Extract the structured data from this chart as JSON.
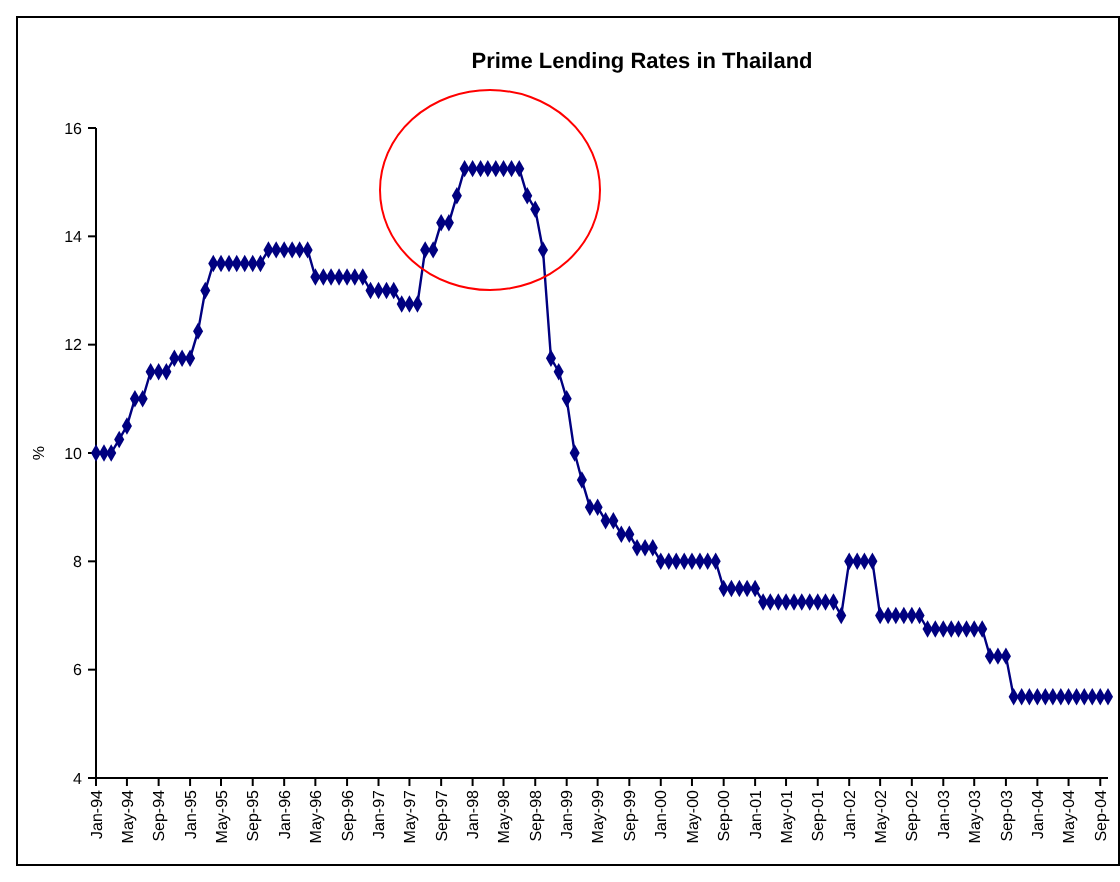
{
  "chart_data": {
    "type": "line",
    "title": "Prime Lending Rates in Thailand",
    "ylabel": "%",
    "x": [
      "1994-01",
      "1994-02",
      "1994-03",
      "1994-04",
      "1994-05",
      "1994-06",
      "1994-07",
      "1994-08",
      "1994-09",
      "1994-10",
      "1994-11",
      "1994-12",
      "1995-01",
      "1995-02",
      "1995-03",
      "1995-04",
      "1995-05",
      "1995-06",
      "1995-07",
      "1995-08",
      "1995-09",
      "1995-10",
      "1995-11",
      "1995-12",
      "1996-01",
      "1996-02",
      "1996-03",
      "1996-04",
      "1996-05",
      "1996-06",
      "1996-07",
      "1996-08",
      "1996-09",
      "1996-10",
      "1996-11",
      "1996-12",
      "1997-01",
      "1997-02",
      "1997-03",
      "1997-04",
      "1997-05",
      "1997-06",
      "1997-07",
      "1997-08",
      "1997-09",
      "1997-10",
      "1997-11",
      "1997-12",
      "1998-01",
      "1998-02",
      "1998-03",
      "1998-04",
      "1998-05",
      "1998-06",
      "1998-07",
      "1998-08",
      "1998-09",
      "1998-10",
      "1998-11",
      "1998-12",
      "1999-01",
      "1999-02",
      "1999-03",
      "1999-04",
      "1999-05",
      "1999-06",
      "1999-07",
      "1999-08",
      "1999-09",
      "1999-10",
      "1999-11",
      "1999-12",
      "2000-01",
      "2000-02",
      "2000-03",
      "2000-04",
      "2000-05",
      "2000-06",
      "2000-07",
      "2000-08",
      "2000-09",
      "2000-10",
      "2000-11",
      "2000-12",
      "2001-01",
      "2001-02",
      "2001-03",
      "2001-04",
      "2001-05",
      "2001-06",
      "2001-07",
      "2001-08",
      "2001-09",
      "2001-10",
      "2001-11",
      "2001-12",
      "2002-01",
      "2002-02",
      "2002-03",
      "2002-04",
      "2002-05",
      "2002-06",
      "2002-07",
      "2002-08",
      "2002-09",
      "2002-10",
      "2002-11",
      "2002-12",
      "2003-01",
      "2003-02",
      "2003-03",
      "2003-04",
      "2003-05",
      "2003-06",
      "2003-07",
      "2003-08",
      "2003-09",
      "2003-10",
      "2003-11",
      "2003-12",
      "2004-01",
      "2004-02",
      "2004-03",
      "2004-04",
      "2004-05",
      "2004-06",
      "2004-07",
      "2004-08",
      "2004-09",
      "2004-10"
    ],
    "series": [
      {
        "color": "#000080",
        "values": [
          10,
          10,
          10,
          10.25,
          10.5,
          11,
          11,
          11.5,
          11.5,
          11.5,
          11.75,
          11.75,
          11.75,
          12.25,
          13,
          13.5,
          13.5,
          13.5,
          13.5,
          13.5,
          13.5,
          13.5,
          13.75,
          13.75,
          13.75,
          13.75,
          13.75,
          13.75,
          13.25,
          13.25,
          13.25,
          13.25,
          13.25,
          13.25,
          13.25,
          13,
          13,
          13,
          13,
          12.75,
          12.75,
          12.75,
          13.75,
          13.75,
          14.25,
          14.25,
          14.75,
          15.25,
          15.25,
          15.25,
          15.25,
          15.25,
          15.25,
          15.25,
          15.25,
          14.75,
          14.5,
          13.75,
          11.75,
          11.5,
          11,
          10,
          9.5,
          9,
          9,
          8.75,
          8.75,
          8.5,
          8.5,
          8.25,
          8.25,
          8.25,
          8,
          8,
          8,
          8,
          8,
          8,
          8,
          8,
          7.5,
          7.5,
          7.5,
          7.5,
          7.5,
          7.25,
          7.25,
          7.25,
          7.25,
          7.25,
          7.25,
          7.25,
          7.25,
          7.25,
          7.25,
          7,
          8,
          8,
          8,
          8,
          7,
          7,
          7,
          7,
          7,
          7,
          6.75,
          6.75,
          6.75,
          6.75,
          6.75,
          6.75,
          6.75,
          6.75,
          6.25,
          6.25,
          6.25,
          5.5,
          5.5,
          5.5,
          5.5,
          5.5,
          5.5,
          5.5,
          5.5,
          5.5,
          5.5,
          5.5,
          5.5,
          5.5
        ]
      }
    ],
    "xlim": [
      "1994-01",
      "2004-10"
    ],
    "xticks": [
      {
        "value": "1994-01",
        "label": "Jan-94"
      },
      {
        "value": "1994-05",
        "label": "May-94"
      },
      {
        "value": "1994-09",
        "label": "Sep-94"
      },
      {
        "value": "1995-01",
        "label": "Jan-95"
      },
      {
        "value": "1995-05",
        "label": "May-95"
      },
      {
        "value": "1995-09",
        "label": "Sep-95"
      },
      {
        "value": "1996-01",
        "label": "Jan-96"
      },
      {
        "value": "1996-05",
        "label": "May-96"
      },
      {
        "value": "1996-09",
        "label": "Sep-96"
      },
      {
        "value": "1997-01",
        "label": "Jan-97"
      },
      {
        "value": "1997-05",
        "label": "May-97"
      },
      {
        "value": "1997-09",
        "label": "Sep-97"
      },
      {
        "value": "1998-01",
        "label": "Jan-98"
      },
      {
        "value": "1998-05",
        "label": "May-98"
      },
      {
        "value": "1998-09",
        "label": "Sep-98"
      },
      {
        "value": "1999-01",
        "label": "Jan-99"
      },
      {
        "value": "1999-05",
        "label": "May-99"
      },
      {
        "value": "1999-09",
        "label": "Sep-99"
      },
      {
        "value": "2000-01",
        "label": "Jan-00"
      },
      {
        "value": "2000-05",
        "label": "May-00"
      },
      {
        "value": "2000-09",
        "label": "Sep-00"
      },
      {
        "value": "2001-01",
        "label": "Jan-01"
      },
      {
        "value": "2001-05",
        "label": "May-01"
      },
      {
        "value": "2001-09",
        "label": "Sep-01"
      },
      {
        "value": "2002-01",
        "label": "Jan-02"
      },
      {
        "value": "2002-05",
        "label": "May-02"
      },
      {
        "value": "2002-09",
        "label": "Sep-02"
      },
      {
        "value": "2003-01",
        "label": "Jan-03"
      },
      {
        "value": "2003-05",
        "label": "May-03"
      },
      {
        "value": "2003-09",
        "label": "Sep-03"
      },
      {
        "value": "2004-01",
        "label": "Jan-04"
      },
      {
        "value": "2004-05",
        "label": "May-04"
      },
      {
        "value": "2004-09",
        "label": "Sep-04"
      }
    ],
    "ylim": [
      4,
      16
    ],
    "yticks": [
      4,
      6,
      8,
      10,
      12,
      14,
      16
    ],
    "grid": false,
    "marker": "diamond",
    "line_style": "solid"
  }
}
